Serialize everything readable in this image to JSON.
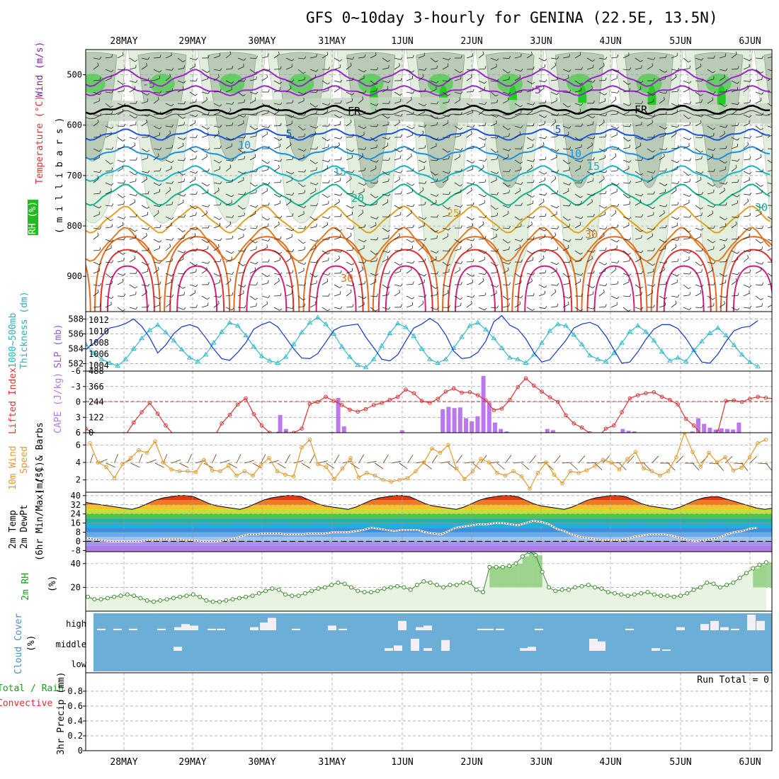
{
  "title": "GFS 0~10day 3-hourly for GENINA (22.5E, 13.5N)",
  "dates": [
    "28MAY",
    "29MAY",
    "30MAY",
    "31MAY",
    "1JUN",
    "2JUN",
    "3JUN",
    "4JUN",
    "5JUN",
    "6JUN"
  ],
  "run_total": "Run Total = 0",
  "panel_labels": {
    "upper_wind": "Wind (m/s)",
    "upper_temp": "Temperature (°C)",
    "upper_rh": "RH (%)",
    "upper_pressure": "( m i l l i b a r s )",
    "thickness": "1000~500mb Thickness (dm)",
    "slp": "SLP (mb)",
    "lifted": "Lifted Index",
    "cape": "CAPE (J/kg)",
    "wind10_a": "10m Wind",
    "wind10_b": "Speed",
    "wind10_c": "(m/s) & Barbs",
    "temp2m_a": "2m Temp",
    "temp2m_b": "2m DewPt",
    "temp2m_c": "(6hr Min/Max) (°C)",
    "rh2m_a": "2m RH",
    "rh2m_b": "(%)",
    "cloud_a": "Cloud Cover",
    "cloud_b": "(%)",
    "precip_a": "Total / Rain",
    "precip_b": "Convective",
    "precip_c": "3hr Precip (mm)"
  },
  "colors": {
    "frame": "#000000",
    "thickness": "#33bbcc",
    "slp": "#1133cc",
    "lifted": "#dd3333",
    "cape": "#bb77ee",
    "wind10": "#e39a2d",
    "dewpoint": "#8b4513",
    "rh2m": "#4a9a3a",
    "cloud_bg": "#6baed6",
    "cloud_cell": "#f3eff5",
    "rh_fill": "#a6d58e",
    "rh_fill_dark": "#3a9a3a",
    "label_wind": "#7b1fa2",
    "label_temp": "#e03030",
    "label_thick": "#2ab0c0",
    "label_slp": "#9a5ad8",
    "label_li": "#dd3333",
    "label_cape": "#bb77ee",
    "label_w10": "#e39a2d",
    "label_rh": "#1aa01a",
    "label_cloud": "#4a90c0",
    "label_precip_total": "#1aa01a",
    "label_precip_conv": "#e03030"
  },
  "chart_data": [
    {
      "type": "heatmap",
      "title": "GFS 0~10day 3-hourly for GENINA (22.5E, 13.5N)",
      "ylabel": "( m i l l i b a r s )",
      "yticks": [
        500,
        600,
        700,
        800,
        900
      ],
      "ylim": [
        450,
        970
      ],
      "contour_labels": [
        "-5",
        "-5",
        "FR",
        "FR",
        "5",
        "5",
        "10",
        "10",
        "15",
        "15",
        "20",
        "25",
        "30",
        "30",
        "30"
      ]
    },
    {
      "type": "line",
      "ylabel": "1000~500mb Thickness (dm)",
      "ylim": [
        581,
        589
      ],
      "yticks": [
        582,
        584,
        586,
        588
      ],
      "series": [
        {
          "name": "1000~500mb Thickness (dm)",
          "values": [
            584.6,
            583.4,
            582.6,
            582.1,
            581.7,
            582.6,
            584.0,
            585.4,
            586.5,
            587.2,
            586.2,
            585.1,
            583.9,
            582.8,
            582.3,
            583.2,
            584.8,
            586.3,
            587.5,
            587.1,
            585.8,
            584.3,
            583.0,
            582.4,
            582.1,
            582.9,
            584.6,
            586.2,
            587.5,
            588.2,
            587.3,
            586.0,
            584.3,
            582.9,
            581.8,
            581.5,
            582.6,
            584.4,
            586.1,
            587.4,
            586.9,
            585.7,
            584.0,
            582.6,
            582.1,
            582.6,
            584.1,
            585.6,
            587.1,
            587.5,
            586.6,
            585.4,
            584.1,
            582.8,
            582.6,
            582.1,
            583.2,
            584.8,
            586.4,
            587.3,
            587.1,
            585.9,
            584.6,
            583.1,
            582.6,
            582.3,
            583.4,
            584.8,
            586.3,
            587.1,
            586.3,
            585.1,
            583.6,
            582.4,
            582.8,
            582.3,
            583.8,
            585.0,
            586.1,
            586.8,
            585.8,
            584.5,
            583.2,
            582.2,
            581.6
          ]
        }
      ]
    },
    {
      "type": "line",
      "ylabel": "SLP (mb)",
      "ylim": [
        1003,
        1013.5
      ],
      "yticks": [
        1004,
        1006,
        1008,
        1010,
        1012
      ],
      "series": [
        {
          "name": "SLP (mb)",
          "values": [
            1006.8,
            1007.9,
            1009.2,
            1010.6,
            1010.9,
            1011.4,
            1012.2,
            1010.9,
            1008.9,
            1006.2,
            1007.6,
            1009.6,
            1010.8,
            1011.2,
            1010.7,
            1008.9,
            1006.9,
            1005.2,
            1004.9,
            1006.3,
            1008.0,
            1010.4,
            1011.2,
            1011.7,
            1010.8,
            1008.9,
            1006.9,
            1005.3,
            1005.2,
            1006.1,
            1008.1,
            1010.2,
            1010.9,
            1011.1,
            1011.3,
            1009.0,
            1007.1,
            1005.1,
            1004.8,
            1005.9,
            1008.3,
            1010.6,
            1011.3,
            1012.3,
            1011.4,
            1009.4,
            1006.5,
            1005.2,
            1005.4,
            1006.3,
            1008.3,
            1011.7,
            1012.8,
            1011.1,
            1010.4,
            1008.7,
            1006.3,
            1004.6,
            1005.0,
            1006.7,
            1008.4,
            1010.6,
            1011.3,
            1011.6,
            1011.0,
            1009.2,
            1006.8,
            1004.4,
            1004.6,
            1006.4,
            1008.6,
            1010.4,
            1011.2,
            1011.2,
            1010.5,
            1008.8,
            1006.6,
            1004.6,
            1004.4,
            1006.0,
            1008.2,
            1010.1,
            1010.7,
            1010.9,
            1011.9
          ]
        }
      ]
    },
    {
      "type": "bar",
      "ylabel": "CAPE (J/kg)",
      "ylim": [
        0,
        488
      ],
      "yticks": [
        0,
        122,
        244,
        366,
        488
      ],
      "values": [
        0,
        0,
        0,
        0,
        0,
        0,
        0,
        0,
        0,
        0,
        0,
        0,
        0,
        0,
        0,
        0,
        0,
        0,
        0,
        0,
        0,
        0,
        0,
        0,
        0,
        0,
        0,
        0,
        0,
        0,
        0,
        0,
        0,
        140,
        30,
        5,
        0,
        0,
        0,
        0,
        0,
        0,
        5,
        275,
        50,
        0,
        0,
        0,
        0,
        0,
        0,
        0,
        0,
        0,
        20,
        0,
        0,
        0,
        0,
        0,
        0,
        185,
        205,
        195,
        200,
        115,
        90,
        130,
        450,
        240,
        80,
        30,
        10,
        0,
        0,
        0,
        0,
        0,
        0,
        30,
        20,
        0,
        0,
        0,
        0,
        0,
        0,
        0,
        0,
        0,
        0,
        0,
        30,
        15,
        10,
        0,
        0,
        0,
        0,
        0,
        0,
        0,
        0,
        0,
        10,
        115,
        70,
        40,
        25,
        35,
        30,
        25,
        80
      ]
    },
    {
      "type": "line",
      "ylabel": "Lifted Index",
      "ylim": [
        6,
        -6
      ],
      "yticks": [
        6,
        3,
        0,
        -3,
        -6
      ],
      "series": [
        {
          "name": "Lifted Index",
          "values": [
            5.2,
            6.2,
            7.0,
            7.4,
            7.2,
            6.4,
            4.0,
            2.0,
            0.2,
            2.3,
            4.6,
            6.4,
            7.2,
            7.8,
            7.4,
            7.1,
            7.0,
            4.2,
            2.5,
            0.5,
            -0.7,
            2.4,
            4.6,
            6.0,
            6.2,
            6.1,
            6.0,
            5.2,
            0.4,
            0.0,
            -1.0,
            -0.2,
            0.6,
            1.5,
            1.9,
            1.4,
            0.6,
            0.2,
            -0.4,
            -1.0,
            -2.4,
            -1.7,
            -0.2,
            0.2,
            -0.6,
            -2.0,
            -2.6,
            -1.8,
            -1.9,
            -1.3,
            -0.3,
            1.6,
            1.3,
            -0.4,
            -2.9,
            -4.6,
            -3.2,
            -2.0,
            -0.9,
            0.0,
            2.6,
            4.2,
            5.0,
            6.1,
            6.8,
            5.2,
            4.6,
            2.0,
            -0.7,
            -1.3,
            -1.7,
            -1.9,
            -1.0,
            -0.4,
            0.5,
            3.3,
            4.6,
            6.4,
            7.0,
            5.8,
            -0.2,
            -0.3,
            0.0,
            -0.6,
            -1.0,
            -0.8,
            -0.6
          ]
        }
      ]
    },
    {
      "type": "line",
      "ylabel": "10m Wind Speed (m/s) & Barbs",
      "ylim": [
        0.6,
        7.4
      ],
      "yticks": [
        2,
        4,
        6
      ],
      "series": [
        {
          "name": "10m Wind Speed",
          "values": [
            6.2,
            4.0,
            3.5,
            2.2,
            3.8,
            4.5,
            5.4,
            5.1,
            6.4,
            4.0,
            3.2,
            3.0,
            3.0,
            2.9,
            4.3,
            3.1,
            3.0,
            3.6,
            2.5,
            3.0,
            2.5,
            3.7,
            4.5,
            3.0,
            2.6,
            2.4,
            5.7,
            6.6,
            3.8,
            3.5,
            2.1,
            3.3,
            4.5,
            2.3,
            2.8,
            2.5,
            2.0,
            1.8,
            2.0,
            2.2,
            3.0,
            4.0,
            5.6,
            5.1,
            6.0,
            3.3,
            2.1,
            3.0,
            4.4,
            4.0,
            2.8,
            2.5,
            3.0,
            2.4,
            1.0,
            2.8,
            4.0,
            2.6,
            1.6,
            3.0,
            2.8,
            3.1,
            3.6,
            4.3,
            4.0,
            3.2,
            4.4,
            5.2,
            3.3,
            3.0,
            2.5,
            3.0,
            4.6,
            7.4,
            5.2,
            3.5,
            5.1,
            4.0,
            4.6,
            3.1,
            3.4,
            4.6,
            6.2,
            6.6
          ]
        }
      ]
    },
    {
      "type": "area",
      "ylabel": "2m Temp / 2m DewPt (6hr Min/Max) (°C)",
      "ylim": [
        -9,
        43
      ],
      "yticks": [
        -8,
        0,
        8,
        16,
        24,
        32,
        40
      ],
      "series": [
        {
          "name": "2m Temp",
          "values": [
            34,
            33,
            32,
            31,
            30,
            29,
            28,
            30,
            33,
            36,
            38,
            39,
            40,
            40,
            39,
            36,
            33,
            31,
            30,
            29,
            28,
            30,
            33,
            36,
            38,
            39,
            40,
            40,
            39,
            36,
            33,
            31,
            30,
            29,
            28,
            30,
            33,
            36,
            38,
            39,
            40,
            40,
            39,
            36,
            33,
            31,
            30,
            29,
            28,
            30,
            33,
            36,
            38,
            39,
            40,
            40,
            39,
            36,
            33,
            31,
            30,
            29,
            28,
            30,
            33,
            36,
            38,
            39,
            40,
            40,
            39,
            36,
            33,
            31,
            30,
            29,
            28,
            30,
            33,
            36,
            38,
            39,
            39,
            37,
            35,
            33,
            31,
            29,
            28,
            29
          ]
        },
        {
          "name": "2m DewPt",
          "values": [
            3,
            2,
            1,
            0,
            0,
            0,
            0,
            0,
            1,
            1,
            2,
            2,
            2,
            1,
            1,
            0,
            0,
            0,
            1,
            2,
            4,
            6,
            6,
            7,
            7,
            7,
            6,
            6,
            6,
            7,
            7,
            7,
            8,
            8,
            8,
            9,
            10,
            12,
            11,
            10,
            9,
            10,
            10,
            10,
            8,
            7,
            6,
            9,
            12,
            13,
            14,
            15,
            15,
            16,
            16,
            15,
            14,
            16,
            18,
            17,
            15,
            11,
            9,
            6,
            4,
            3,
            2,
            1,
            1,
            1,
            2,
            4,
            5,
            6,
            6,
            6,
            5,
            3,
            1,
            0,
            1,
            2,
            3,
            6,
            8,
            9,
            11,
            12
          ]
        }
      ]
    },
    {
      "type": "area",
      "ylabel": "2m RH (%)",
      "ylim": [
        0,
        50
      ],
      "yticks": [
        20,
        40
      ],
      "series": [
        {
          "name": "2m RH",
          "values": [
            12,
            10,
            10,
            11,
            12,
            13,
            14,
            13,
            11,
            9,
            8,
            9,
            10,
            11,
            12,
            13,
            14,
            12,
            9,
            8,
            8,
            9,
            10,
            11,
            12,
            13,
            15,
            17,
            19,
            18,
            14,
            13,
            13,
            15,
            17,
            19,
            20,
            22,
            24,
            23,
            20,
            17,
            16,
            16,
            17,
            19,
            20,
            21,
            20,
            18,
            22,
            25,
            24,
            22,
            20,
            22,
            22,
            24,
            24,
            18,
            16,
            37,
            37,
            37,
            38,
            40,
            46,
            50,
            47,
            33,
            20,
            17,
            18,
            18,
            20,
            21,
            22,
            20,
            19,
            16,
            15,
            14,
            13,
            14,
            15,
            16,
            14,
            13,
            13,
            12,
            13,
            15,
            18,
            20,
            24,
            23,
            20,
            22,
            24,
            28,
            32,
            36,
            39,
            41
          ]
        }
      ]
    },
    {
      "type": "heatmap",
      "ylabel": "Cloud Cover (%)",
      "yticks": [
        "low",
        "middle",
        "high"
      ]
    },
    {
      "type": "bar",
      "ylabel": "3hr Precip (mm)",
      "ylim": [
        0,
        1
      ],
      "yticks": [
        0,
        0.2,
        0.4,
        0.6,
        0.8
      ],
      "series": [
        {
          "name": "Total / Rain",
          "values": []
        },
        {
          "name": "Convective",
          "values": []
        }
      ]
    }
  ]
}
